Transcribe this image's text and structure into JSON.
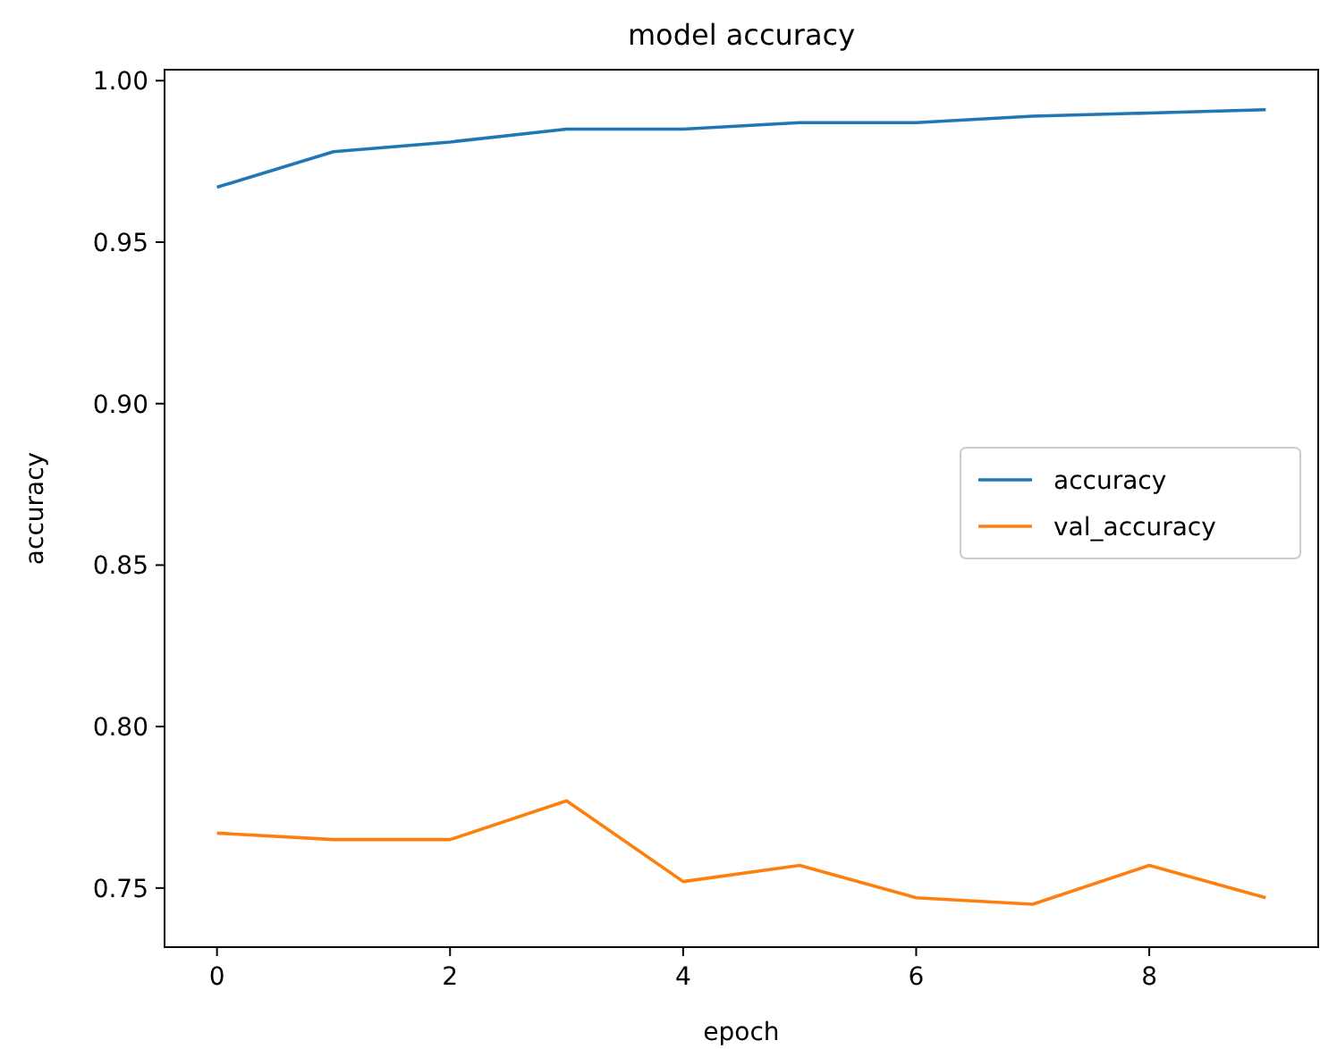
{
  "chart_data": {
    "type": "line",
    "title": "model accuracy",
    "xlabel": "epoch",
    "ylabel": "accuracy",
    "x": [
      0,
      1,
      2,
      3,
      4,
      5,
      6,
      7,
      8,
      9
    ],
    "series": [
      {
        "name": "accuracy",
        "color": "#1f77b4",
        "values": [
          0.967,
          0.978,
          0.981,
          0.985,
          0.985,
          0.987,
          0.987,
          0.989,
          0.99,
          0.991
        ]
      },
      {
        "name": "val_accuracy",
        "color": "#ff7f0e",
        "values": [
          0.767,
          0.765,
          0.765,
          0.777,
          0.752,
          0.757,
          0.747,
          0.745,
          0.757,
          0.747
        ]
      }
    ],
    "xlim": [
      -0.45,
      9.45
    ],
    "ylim": [
      0.7317,
      1.0034
    ],
    "xticks": [
      0,
      2,
      4,
      6,
      8
    ],
    "yticks": [
      {
        "value": 0.75,
        "label": "0.75"
      },
      {
        "value": 0.8,
        "label": "0.80"
      },
      {
        "value": 0.85,
        "label": "0.85"
      },
      {
        "value": 0.9,
        "label": "0.90"
      },
      {
        "value": 0.95,
        "label": "0.95"
      },
      {
        "value": 1.0,
        "label": "1.00"
      }
    ],
    "legend": "right",
    "grid": false,
    "marker": "none",
    "line_style": "solid"
  }
}
